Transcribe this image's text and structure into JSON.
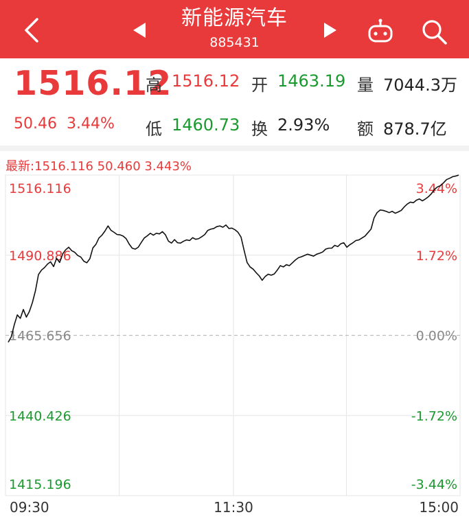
{
  "header": {
    "title": "新能源汽车",
    "code": "885431"
  },
  "quote": {
    "price": "1516.12",
    "change": "50.46",
    "change_pct": "3.44%",
    "high_label": "高",
    "high": "1516.12",
    "open_label": "开",
    "open": "1463.19",
    "volume_label": "量",
    "volume": "7044.3万",
    "low_label": "低",
    "low": "1460.73",
    "turnover_label": "换",
    "turnover": "2.93%",
    "amount_label": "额",
    "amount": "878.7亿"
  },
  "latest_line": "最新:1516.116  50.460  3.443%",
  "colors": {
    "up": "#e83a3a",
    "down": "#1a9a2e",
    "header": "#e83a3a"
  },
  "chart_data": {
    "type": "line",
    "series": [
      {
        "values": [
          1463.5,
          1465.2,
          1469.0,
          1472.1,
          1471.0,
          1473.8,
          1471.4,
          1473.2,
          1476.0,
          1479.7,
          1484.8,
          1486.2,
          1487.0,
          1488.1,
          1488.8,
          1487.3,
          1489.9,
          1488.6,
          1491.3,
          1492.6,
          1493.4,
          1492.3,
          1491.8,
          1490.8,
          1490.3,
          1489.0,
          1488.5,
          1489.8,
          1493.2,
          1494.3,
          1496.3,
          1497.2,
          1498.5,
          1500.1,
          1498.7,
          1498.1,
          1497.4,
          1497.3,
          1496.9,
          1496.1,
          1494.4,
          1493.1,
          1492.8,
          1493.4,
          1494.9,
          1496.3,
          1497.0,
          1497.8,
          1497.2,
          1497.8,
          1497.6,
          1498.3,
          1497.3,
          1495.3,
          1494.7,
          1495.8,
          1494.8,
          1494.7,
          1495.3,
          1495.7,
          1495.5,
          1496.4,
          1495.9,
          1496.1,
          1496.7,
          1497.4,
          1498.7,
          1499.1,
          1499.3,
          1499.9,
          1500.1,
          1499.7,
          1500.4,
          1499.3,
          1499.4,
          1498.9,
          1498.1,
          1496.6,
          1492.5,
          1488.6,
          1487.2,
          1486.5,
          1485.4,
          1484.4,
          1483.0,
          1484.2,
          1484.9,
          1484.6,
          1485.0,
          1486.2,
          1487.6,
          1487.2,
          1487.9,
          1487.6,
          1488.5,
          1489.4,
          1490.1,
          1490.4,
          1490.8,
          1491.2,
          1490.9,
          1490.6,
          1491.2,
          1491.5,
          1491.9,
          1492.8,
          1493.1,
          1493.1,
          1494.0,
          1493.6,
          1494.5,
          1494.8,
          1493.4,
          1494.2,
          1494.8,
          1495.5,
          1495.7,
          1496.3,
          1496.9,
          1498.0,
          1499.1,
          1502.6,
          1504.3,
          1505.1,
          1505.0,
          1504.7,
          1504.3,
          1504.7,
          1504.1,
          1504.5,
          1505.0,
          1506.1,
          1507.0,
          1507.6,
          1507.4,
          1508.2,
          1508.6,
          1508.0,
          1508.6,
          1509.3,
          1510.3,
          1511.6,
          1512.4,
          1512.8,
          1513.7,
          1514.7,
          1515.1,
          1515.6,
          1515.8,
          1516.1
        ]
      }
    ],
    "base": 1465.656,
    "ylim": [
      1415.196,
      1516.116
    ],
    "y_ticks_left": [
      "1516.116",
      "1490.886",
      "1465.656",
      "1440.426",
      "1415.196"
    ],
    "y_ticks_right": [
      "3.44%",
      "1.72%",
      "0.00%",
      "-1.72%",
      "-3.44%"
    ],
    "x_ticks": [
      "09:30",
      "11:30",
      "15:00"
    ],
    "grid": true
  }
}
